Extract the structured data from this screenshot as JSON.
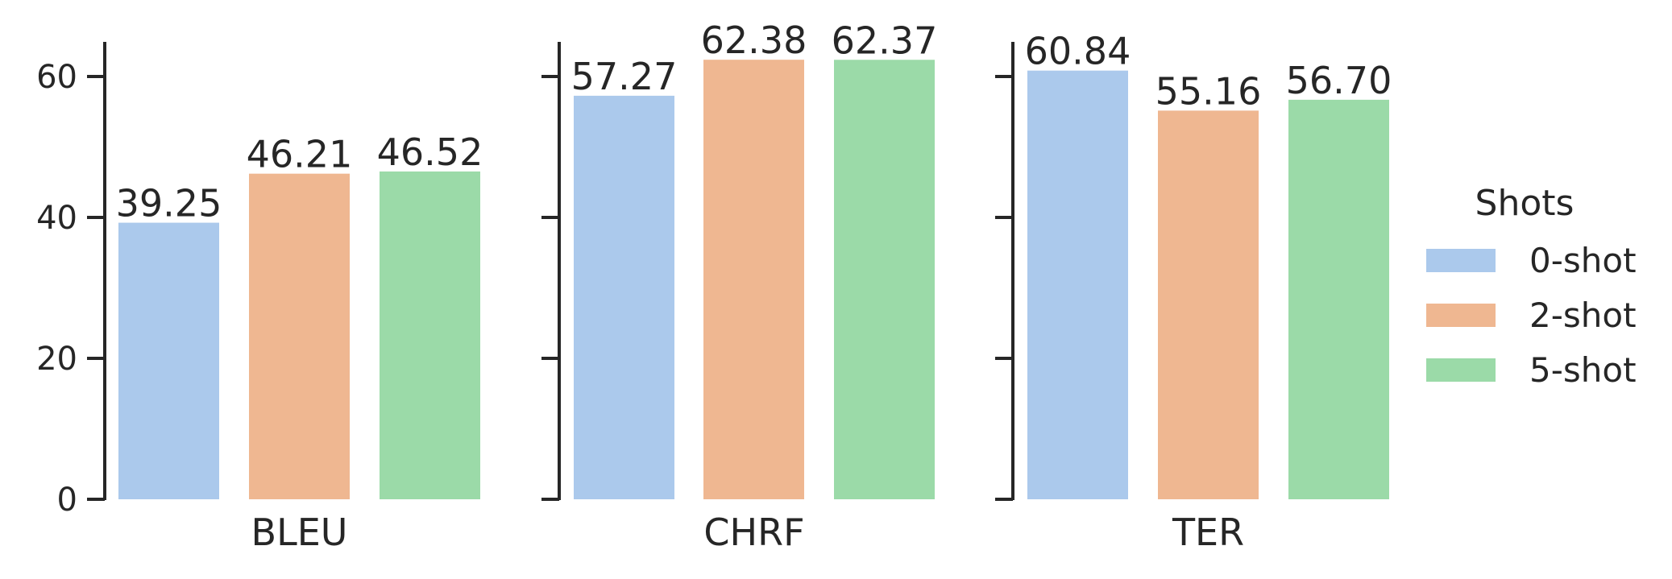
{
  "chart_data": {
    "type": "bar",
    "categories": [
      "BLEU",
      "CHRF",
      "TER"
    ],
    "series": [
      {
        "name": "0-shot",
        "values": [
          39.25,
          57.27,
          60.84
        ],
        "color": "#abc9ec"
      },
      {
        "name": "2-shot",
        "values": [
          46.21,
          62.38,
          55.16
        ],
        "color": "#efb791"
      },
      {
        "name": "5-shot",
        "values": [
          46.52,
          62.37,
          56.7
        ],
        "color": "#9bdaa8"
      }
    ],
    "value_labels": [
      [
        "39.25",
        "57.27",
        "60.84"
      ],
      [
        "46.21",
        "62.38",
        "55.16"
      ],
      [
        "46.52",
        "62.37",
        "56.70"
      ]
    ],
    "y_ticks": [
      0,
      20,
      40,
      60
    ],
    "ylim": [
      0,
      65.5
    ],
    "legend": {
      "title": "Shots",
      "position": "right"
    },
    "grid": false,
    "title": "",
    "xlabel": "",
    "ylabel": ""
  }
}
